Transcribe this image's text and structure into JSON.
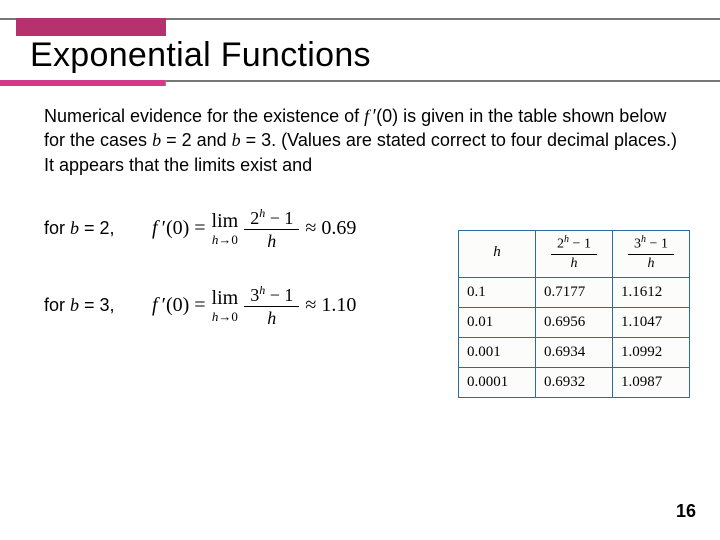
{
  "colors": {
    "accent_dark": "#b5326e",
    "accent_light": "#d03a86",
    "rule": "#777777",
    "table_border": "#2c6aa0",
    "table_bg": "#fcfdfb",
    "text": "#000000",
    "bg": "#ffffff"
  },
  "title": "Exponential Functions",
  "paragraph": {
    "p1": "Numerical evidence for the existence of ",
    "fi": "f",
    "prime0": " ′(0)",
    "p2": " is given in the table shown below for the cases ",
    "b1i": "b",
    "b1": " = 2 and ",
    "b2i": "b",
    "b2": " = 3. (Values are stated correct to four decimal places.) It appears that the limits exist and"
  },
  "rows": {
    "b2": {
      "label_prefix": "for ",
      "label_i": "b",
      "label_suffix": " = 2,",
      "lhs_f": "f",
      "lhs_rest": " ′(0) =",
      "lim_top": "lim",
      "lim_h": "h",
      "lim_arrow": "→0",
      "num_base": "2",
      "num_sup": "h",
      "num_tail": " − 1",
      "den": "h",
      "approx": "≈ 0.69"
    },
    "b3": {
      "label_prefix": "for ",
      "label_i": "b",
      "label_suffix": " = 3,",
      "lhs_f": "f",
      "lhs_rest": " ′(0) =",
      "lim_top": "lim",
      "lim_h": "h",
      "lim_arrow": "→0",
      "num_base": "3",
      "num_sup": "h",
      "num_tail": " − 1",
      "den": "h",
      "approx": "≈ 1.10"
    }
  },
  "table": {
    "head": {
      "h": "h",
      "c2_base": "2",
      "c2_sup": "h",
      "c2_tail": " − 1",
      "c2_den": "h",
      "c3_base": "3",
      "c3_sup": "h",
      "c3_tail": " − 1",
      "c3_den": "h"
    },
    "rows": [
      {
        "h": "0.1",
        "v2": "0.7177",
        "v3": "1.1612"
      },
      {
        "h": "0.01",
        "v2": "0.6956",
        "v3": "1.1047"
      },
      {
        "h": "0.001",
        "v2": "0.6934",
        "v3": "1.0992"
      },
      {
        "h": "0.0001",
        "v2": "0.6932",
        "v3": "1.0987"
      }
    ]
  },
  "page_number": "16"
}
